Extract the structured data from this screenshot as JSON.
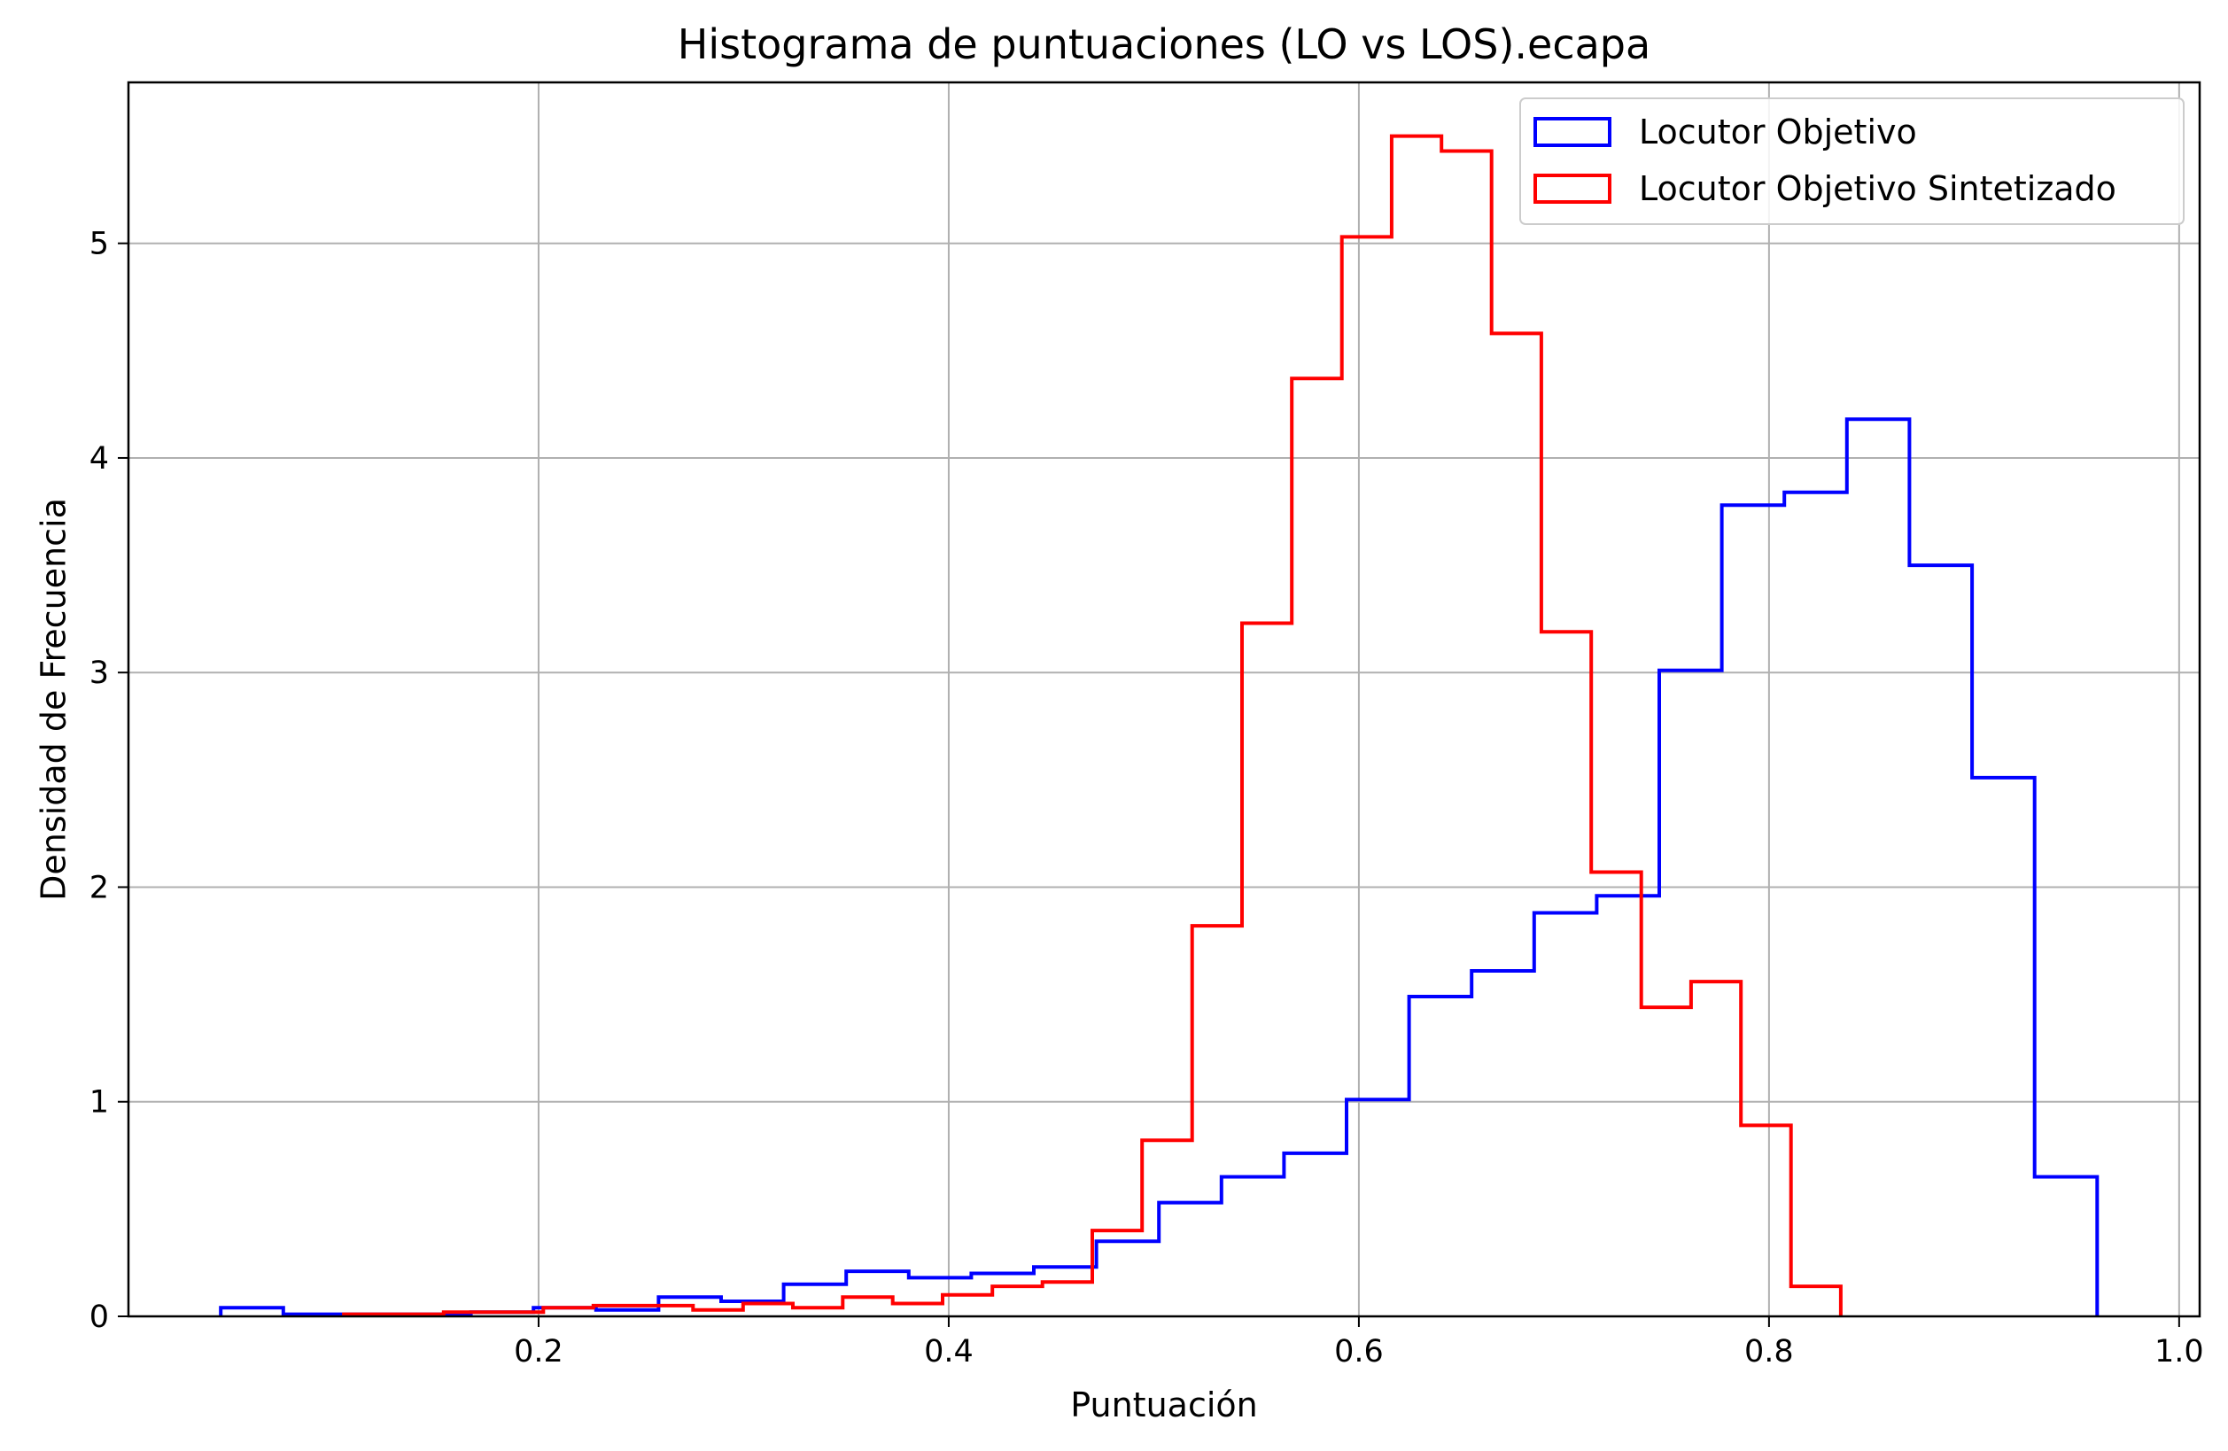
{
  "chart_data": {
    "type": "histogram",
    "title": "Histograma de puntuaciones (LO vs LOS).ecapa",
    "xlabel": "Puntuación",
    "ylabel": "Densidad de Frecuencia",
    "xlim": [
      0.0,
      1.01
    ],
    "ylim": [
      0,
      5.75
    ],
    "x_ticks": [
      0.2,
      0.4,
      0.6,
      0.8,
      1.0
    ],
    "x_tick_labels": [
      "0.2",
      "0.4",
      "0.6",
      "0.8",
      "1.0"
    ],
    "y_ticks": [
      0,
      1,
      2,
      3,
      4,
      5
    ],
    "y_tick_labels": [
      "0",
      "1",
      "2",
      "3",
      "4",
      "5"
    ],
    "grid": true,
    "legend_position": "top-right",
    "series": [
      {
        "name": "Locutor Objetivo",
        "color": "#0000ff",
        "bin_edges": [
          0.045,
          0.0755,
          0.106,
          0.1365,
          0.167,
          0.1975,
          0.228,
          0.2585,
          0.289,
          0.3195,
          0.35,
          0.3805,
          0.411,
          0.4415,
          0.472,
          0.5025,
          0.533,
          0.5635,
          0.594,
          0.6245,
          0.655,
          0.6855,
          0.716,
          0.7465,
          0.777,
          0.8075,
          0.838,
          0.8685,
          0.899,
          0.9295,
          0.96
        ],
        "values": [
          0.04,
          0.01,
          0.01,
          0.01,
          0.02,
          0.04,
          0.03,
          0.09,
          0.07,
          0.15,
          0.21,
          0.18,
          0.2,
          0.23,
          0.35,
          0.53,
          0.65,
          0.76,
          1.01,
          1.49,
          1.61,
          1.88,
          1.96,
          3.01,
          3.78,
          3.84,
          4.18,
          3.5,
          2.51,
          0.65
        ]
      },
      {
        "name": "Locutor Objetivo Sintetizado",
        "color": "#ff0000",
        "bin_edges": [
          0.105,
          0.1293,
          0.1537,
          0.178,
          0.2023,
          0.2267,
          0.251,
          0.2753,
          0.2997,
          0.324,
          0.3483,
          0.3727,
          0.397,
          0.4213,
          0.4457,
          0.47,
          0.4943,
          0.5187,
          0.543,
          0.5673,
          0.5917,
          0.616,
          0.6403,
          0.6647,
          0.689,
          0.7133,
          0.7377,
          0.762,
          0.7863,
          0.8107,
          0.835
        ],
        "values": [
          0.01,
          0.01,
          0.02,
          0.02,
          0.04,
          0.05,
          0.05,
          0.03,
          0.06,
          0.04,
          0.09,
          0.06,
          0.1,
          0.14,
          0.16,
          0.4,
          0.82,
          1.82,
          3.23,
          4.37,
          5.03,
          5.5,
          5.43,
          4.58,
          3.19,
          2.07,
          1.44,
          1.56,
          0.89,
          0.14
        ]
      }
    ]
  }
}
